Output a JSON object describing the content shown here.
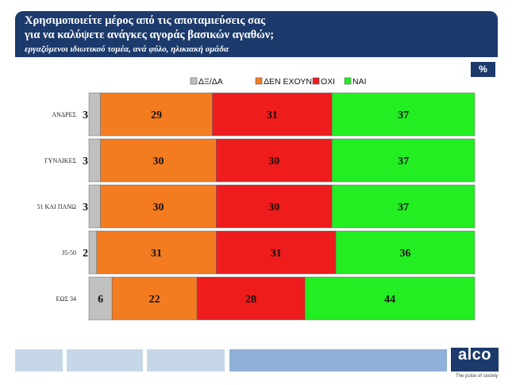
{
  "header": {
    "title_line1": "Χρησιμοποιείτε μέρος από τις αποταμιεύσεις σας",
    "title_line2": "για να καλύψετε ανάγκες αγοράς βασικών αγαθών;",
    "subtitle": "εργαζόμενοι ιδιωτικού τομέα, ανά φύλο, ηλικιακή ομάδα"
  },
  "unit_badge": "%",
  "brand": {
    "logo": "alco",
    "tagline": "The pulse of society"
  },
  "chart_data": {
    "type": "bar",
    "orientation": "horizontal",
    "stacked": true,
    "legend_position": "top",
    "categories": [
      "ΑΝΔΡΕΣ",
      "ΓΥΝΑΙΚΕΣ",
      "51 ΚΑΙ ΠΑΝΩ",
      "35-50",
      "ΕΩΣ 34"
    ],
    "series": [
      {
        "name": "ΔΞ/ΔΑ",
        "color": "#c0c0c0",
        "values": [
          3,
          3,
          3,
          2,
          6
        ]
      },
      {
        "name": "ΔΕΝ ΕΧΟΥΝ",
        "color": "#f47c20",
        "values": [
          29,
          30,
          30,
          31,
          22
        ]
      },
      {
        "name": "ΟΧΙ",
        "color": "#ee1c1c",
        "values": [
          31,
          30,
          30,
          31,
          28
        ]
      },
      {
        "name": "ΝΑΙ",
        "color": "#22ee22",
        "values": [
          37,
          37,
          37,
          36,
          44
        ]
      }
    ],
    "remainder_color": "#119911",
    "xlim": [
      0,
      100
    ]
  }
}
